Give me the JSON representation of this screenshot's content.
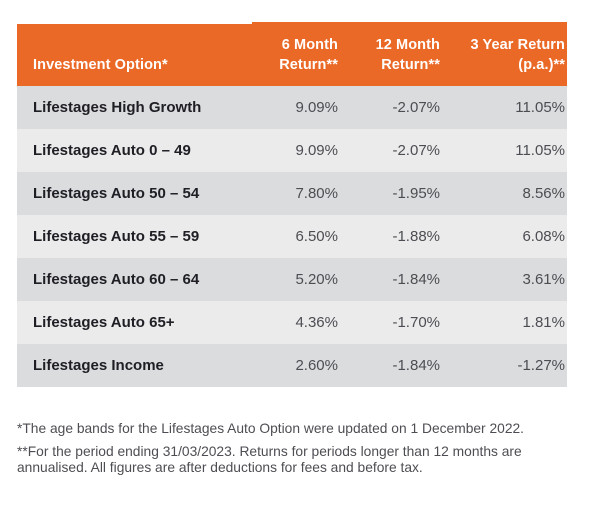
{
  "table": {
    "columns": {
      "option": "Investment Option*",
      "six_month_line1": "6 Month",
      "six_month_line2": "Return**",
      "twelve_month_line1": "12 Month",
      "twelve_month_line2": "Return**",
      "three_year_line1": "3 Year Return",
      "three_year_line2": "(p.a.)**"
    },
    "rows": [
      {
        "option": "Lifestages High Growth",
        "six_month": "9.09%",
        "twelve_month": "-2.07%",
        "three_year": "11.05%"
      },
      {
        "option": "Lifestages Auto 0 – 49",
        "six_month": "9.09%",
        "twelve_month": "-2.07%",
        "three_year": "11.05%"
      },
      {
        "option": "Lifestages Auto 50 – 54",
        "six_month": "7.80%",
        "twelve_month": "-1.95%",
        "three_year": "8.56%"
      },
      {
        "option": "Lifestages Auto 55 – 59",
        "six_month": "6.50%",
        "twelve_month": "-1.88%",
        "three_year": "6.08%"
      },
      {
        "option": "Lifestages Auto 60 – 64",
        "six_month": "5.20%",
        "twelve_month": "-1.84%",
        "three_year": "3.61%"
      },
      {
        "option": "Lifestages Auto 65+",
        "six_month": "4.36%",
        "twelve_month": "-1.70%",
        "three_year": "1.81%"
      },
      {
        "option": "Lifestages Income",
        "six_month": "2.60%",
        "twelve_month": "-1.84%",
        "three_year": "-1.27%"
      }
    ]
  },
  "footnotes": {
    "age_bands": "*The age bands for the Lifestages Auto Option were updated on 1 December 2022.",
    "period": "**For the period ending 31/03/2023. Returns for periods longer than 12 months are annualised. All figures are after deductions for fees and before tax."
  },
  "colors": {
    "header_orange": "#eb6926",
    "row_dark_gray": "#dbdcdd",
    "row_light_gray": "#ebebec",
    "label_text": "#1e1e24",
    "value_text": "#4c4d52",
    "footnote_text": "#4d4e53"
  }
}
